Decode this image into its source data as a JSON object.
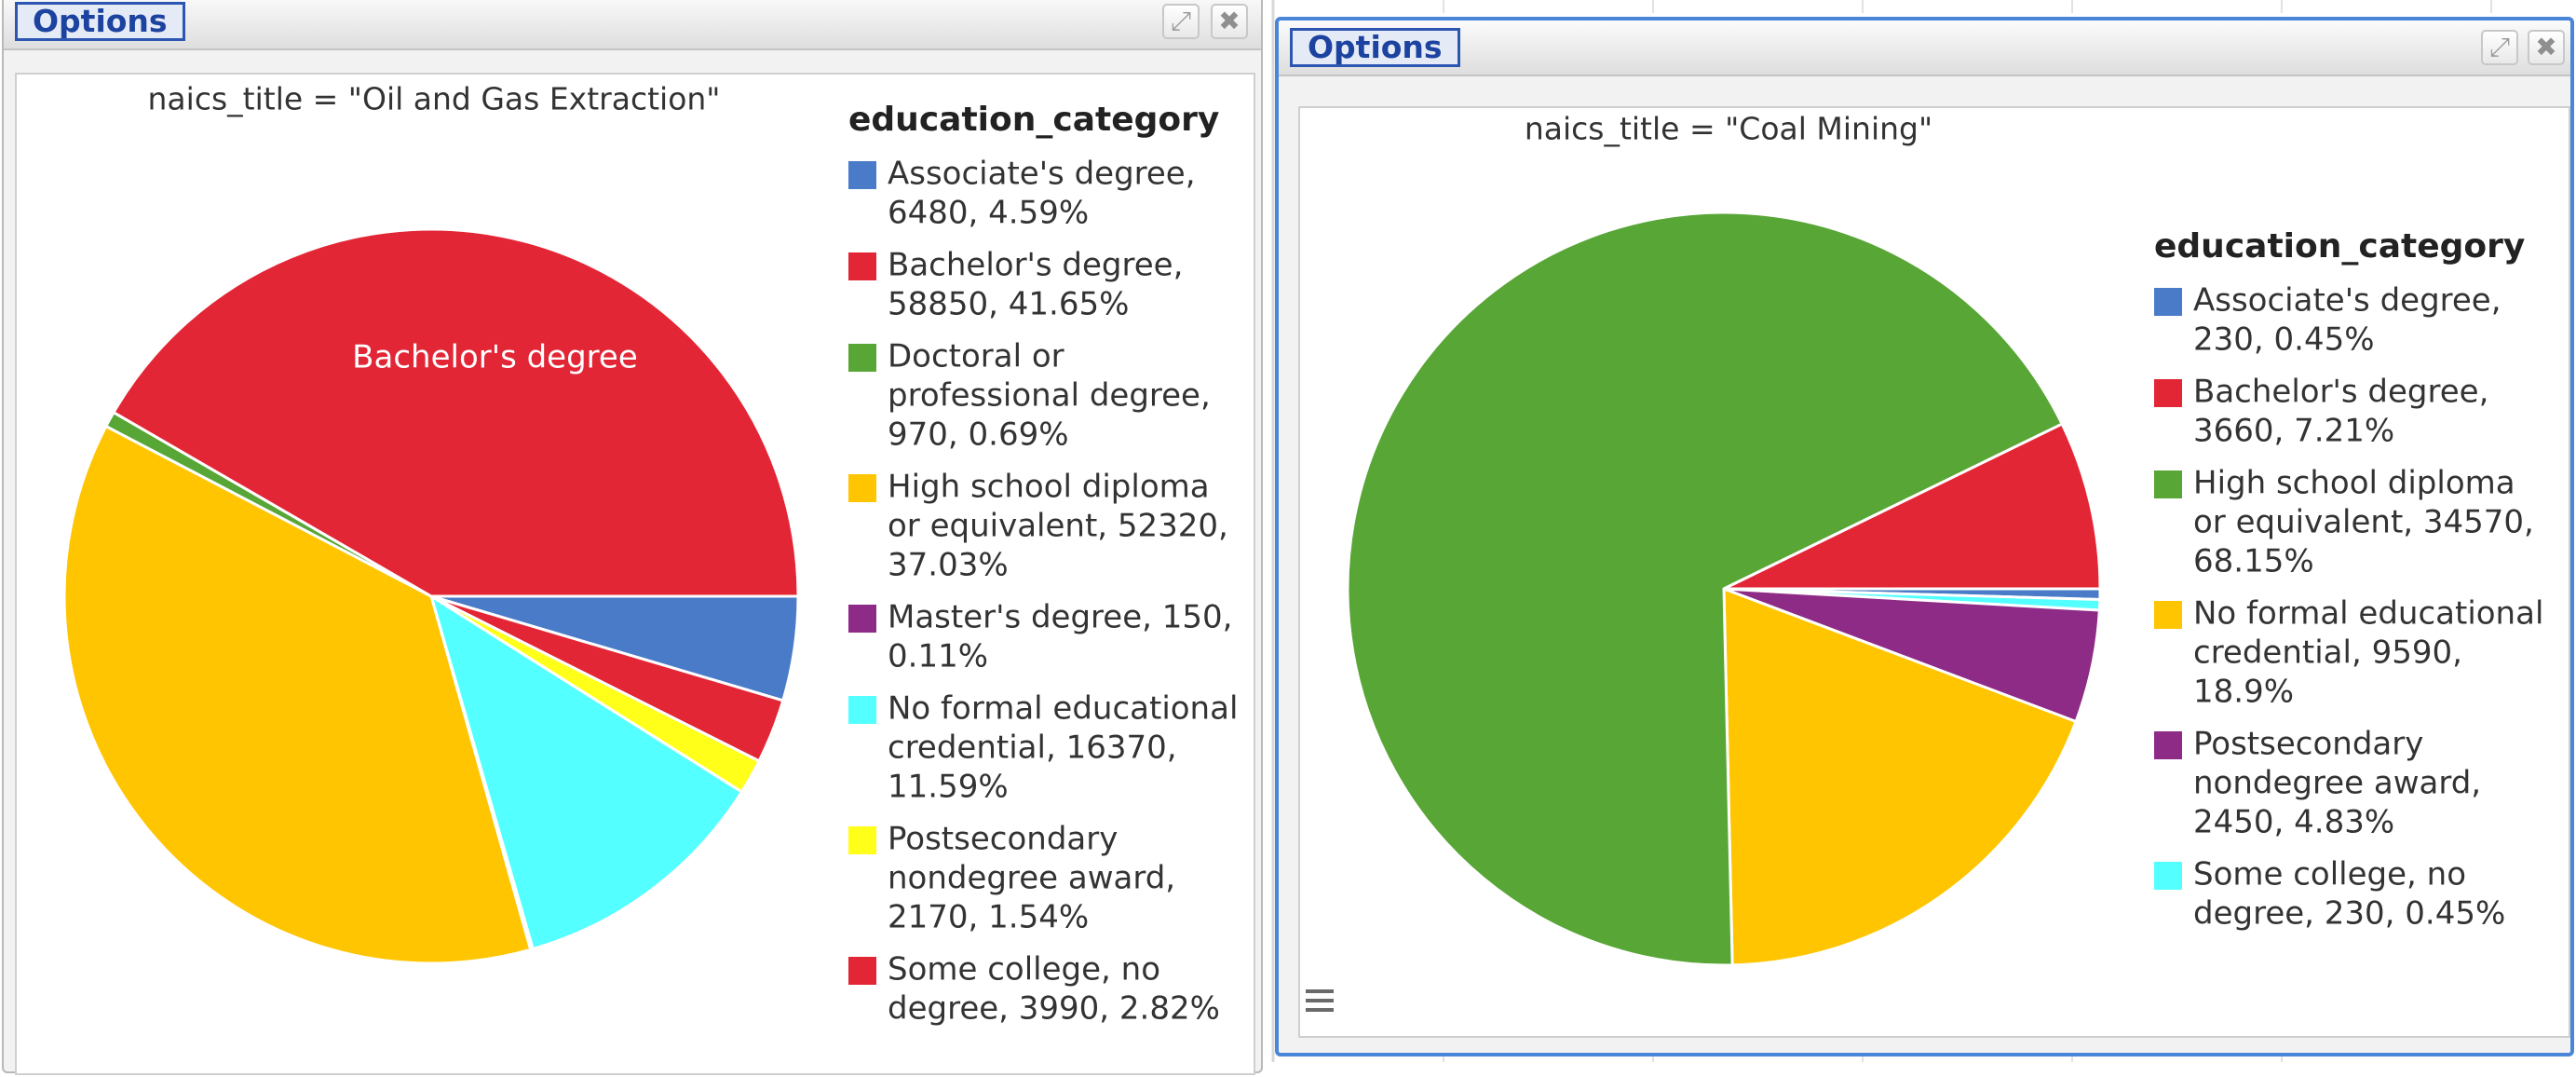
{
  "panels": [
    {
      "options_label": "Options",
      "expand_icon": "expand-icon",
      "close_icon": "close-icon"
    },
    {
      "options_label": "Options",
      "expand_icon": "expand-icon",
      "close_icon": "close-icon",
      "menu_icon": "hamburger-menu-icon"
    }
  ],
  "chart_data": [
    {
      "type": "pie",
      "title": "naics_title = \"Oil and Gas Extraction\"",
      "legend_title": "education_category",
      "legend_position": "right",
      "start_angle_deg": 0,
      "slices": [
        {
          "label": "Associate's degree",
          "value": 6480,
          "percent": "4.59%",
          "color": "#4a7bc8",
          "legend_lines": [
            "Associate's degree,",
            "6480, 4.59%"
          ]
        },
        {
          "label": "Some college, no degree",
          "value": 3990,
          "percent": "2.82%",
          "color": "#e32636",
          "legend_lines": [
            "Some college, no",
            "degree, 3990, 2.82%"
          ]
        },
        {
          "label": "Postsecondary nondegree award",
          "value": 2170,
          "percent": "1.54%",
          "color": "#ffff1a",
          "legend_lines": [
            "Postsecondary",
            "nondegree award,",
            "2170, 1.54%"
          ]
        },
        {
          "label": "No formal educational credential",
          "value": 16370,
          "percent": "11.59%",
          "color": "#54ffff",
          "legend_lines": [
            "No formal educational",
            "credential, 16370,",
            "11.59%"
          ]
        },
        {
          "label": "Master's degree",
          "value": 150,
          "percent": "0.11%",
          "color": "#8e2b86",
          "legend_lines": [
            "Master's degree, 150,",
            "0.11%"
          ]
        },
        {
          "label": "High school diploma or equivalent",
          "value": 52320,
          "percent": "37.03%",
          "color": "#ffc500",
          "legend_lines": [
            "High school diploma",
            "or equivalent, 52320,",
            "37.03%"
          ]
        },
        {
          "label": "Doctoral or professional degree",
          "value": 970,
          "percent": "0.69%",
          "color": "#58a636",
          "legend_lines": [
            "Doctoral or",
            "professional degree,",
            "970, 0.69%"
          ]
        },
        {
          "label": "Bachelor's degree",
          "value": 58850,
          "percent": "41.65%",
          "color": "#e32636",
          "legend_lines": [
            "Bachelor's degree,",
            "58850, 41.65%"
          ],
          "slice_label": "Bachelor's degree"
        }
      ],
      "legend_order": [
        0,
        7,
        6,
        5,
        4,
        3,
        2,
        1
      ]
    },
    {
      "type": "pie",
      "title": "naics_title = \"Coal Mining\"",
      "legend_title": "education_category",
      "legend_position": "right",
      "start_angle_deg": 0,
      "slices": [
        {
          "label": "Associate's degree",
          "value": 230,
          "percent": "0.45%",
          "color": "#4a7bc8",
          "legend_lines": [
            "Associate's degree,",
            "230, 0.45%"
          ]
        },
        {
          "label": "Some college, no degree",
          "value": 230,
          "percent": "0.45%",
          "color": "#54ffff",
          "legend_lines": [
            "Some college, no",
            "degree, 230, 0.45%"
          ]
        },
        {
          "label": "Postsecondary nondegree award",
          "value": 2450,
          "percent": "4.83%",
          "color": "#8e2b86",
          "legend_lines": [
            "Postsecondary",
            "nondegree award,",
            "2450, 4.83%"
          ]
        },
        {
          "label": "No formal educational credential",
          "value": 9590,
          "percent": "18.9%",
          "color": "#ffc500",
          "legend_lines": [
            "No formal educational",
            "credential, 9590,",
            "18.9%"
          ]
        },
        {
          "label": "High school diploma or equivalent",
          "value": 34570,
          "percent": "68.15%",
          "color": "#58a636",
          "legend_lines": [
            "High school diploma",
            "or equivalent, 34570,",
            "68.15%"
          ]
        },
        {
          "label": "Bachelor's degree",
          "value": 3660,
          "percent": "7.21%",
          "color": "#e32636",
          "legend_lines": [
            "Bachelor's degree,",
            "3660, 7.21%"
          ]
        }
      ],
      "legend_order": [
        0,
        5,
        4,
        3,
        2,
        1
      ]
    }
  ]
}
